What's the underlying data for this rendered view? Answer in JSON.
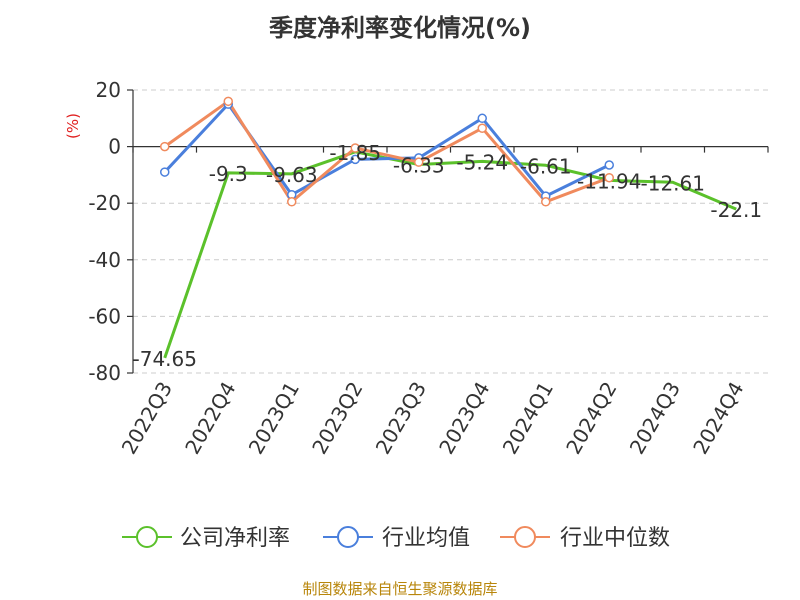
{
  "title": "季度净利率变化情况(%)",
  "source": "制图数据来自恒生聚源数据库",
  "chart_data": {
    "type": "line",
    "title": "季度净利率变化情况(%)",
    "ylabel": "(%)",
    "ylim": [
      -80,
      20
    ],
    "yticks": [
      20,
      0,
      -20,
      -40,
      -60,
      -80
    ],
    "categories": [
      "2022Q3",
      "2022Q4",
      "2023Q1",
      "2023Q2",
      "2023Q3",
      "2023Q4",
      "2024Q1",
      "2024Q2",
      "2024Q3",
      "2024Q4"
    ],
    "grid": true,
    "legend_position": "bottom",
    "series": [
      {
        "name": "公司净利率",
        "color": "#5bc12b",
        "values": [
          -74.65,
          -9.3,
          -9.63,
          -1.85,
          -6.33,
          -5.24,
          -6.61,
          -11.94,
          -12.61,
          -22.1
        ],
        "labels": [
          "-74.65",
          "-9.3",
          "-9.63",
          "-1.85",
          "-6.33",
          "-5.24",
          "-6.61",
          "-11.94",
          "-12.61",
          "-22.1"
        ]
      },
      {
        "name": "行业均值",
        "color": "#4a7fdc",
        "values": [
          -9,
          15,
          -17,
          -4.5,
          -4,
          10,
          -17.5,
          -6.5,
          null,
          null
        ]
      },
      {
        "name": "行业中位数",
        "color": "#f08a5d",
        "values": [
          0,
          16,
          -19.5,
          -0.5,
          -5.5,
          6.5,
          -19.5,
          -11,
          null,
          null
        ]
      }
    ]
  }
}
